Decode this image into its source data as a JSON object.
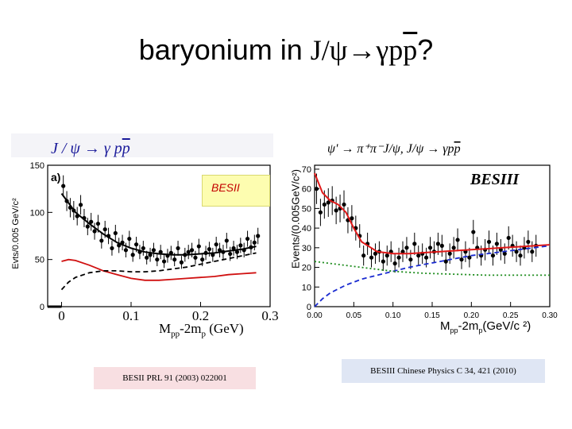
{
  "title": {
    "prefix": "baryonium in ",
    "formula": "J/ψ→γp",
    "pbar": "p",
    "suffix": "?"
  },
  "left_panel": {
    "reaction": {
      "a": "J / ψ → γ p",
      "pbar": "p"
    },
    "panel_tag": "a)",
    "badge": "BESII",
    "ylabel": "Evts/0.005 GeV/c²",
    "xlabel": {
      "main": "M",
      "sub": "pp",
      "rest": "-2m",
      "sub2": "p",
      "unit": " (GeV)"
    },
    "reference": "BESII PRL 91 (2003) 022001"
  },
  "right_panel": {
    "reaction": {
      "a": "ψ' → π⁺π⁻J/ψ, J/ψ → γp",
      "pbar": "p"
    },
    "badge": "BESIII",
    "ylabel": "Events/(0.005GeV/c²)",
    "xlabel": {
      "main": "M",
      "sub": "pp",
      "rest": "-2m",
      "sub2": "p",
      "unit": "(GeV/c ²)"
    },
    "reference": "BESIII Chinese Physics C 34, 421 (2010)"
  },
  "chart_data": [
    {
      "type": "scatter",
      "title": "J / ψ → γ pp̄",
      "xlabel": "Mpp-2mp (GeV)",
      "ylabel": "Evts/0.005 GeV/c²",
      "xlim": [
        -0.02,
        0.3
      ],
      "ylim": [
        0,
        150
      ],
      "xticks": [
        0,
        0.1,
        0.2,
        0.3
      ],
      "xtick_labels": [
        "0",
        "0.1",
        "0.2",
        "0.3"
      ],
      "yticks": [
        0,
        50,
        100,
        150
      ],
      "ytick_labels": [
        "0",
        "50",
        "100",
        "150"
      ],
      "series": [
        {
          "kind": "points",
          "color": "#000000",
          "x": [
            0.0025,
            0.0075,
            0.0125,
            0.0175,
            0.0225,
            0.0275,
            0.0325,
            0.0375,
            0.0425,
            0.0475,
            0.0525,
            0.0575,
            0.0625,
            0.0675,
            0.0725,
            0.0775,
            0.0825,
            0.0875,
            0.0925,
            0.0975,
            0.1025,
            0.1075,
            0.1125,
            0.1175,
            0.1225,
            0.1275,
            0.1325,
            0.1375,
            0.1425,
            0.1475,
            0.1525,
            0.1575,
            0.1625,
            0.1675,
            0.1725,
            0.1775,
            0.1825,
            0.1875,
            0.1925,
            0.1975,
            0.2025,
            0.2075,
            0.2125,
            0.2175,
            0.2225,
            0.2275,
            0.2325,
            0.2375,
            0.2425,
            0.2475,
            0.2525,
            0.2575,
            0.2625,
            0.2675,
            0.2725,
            0.2775,
            0.2825
          ],
          "y": [
            128,
            112,
            105,
            102,
            96,
            108,
            94,
            85,
            90,
            80,
            88,
            70,
            82,
            75,
            62,
            78,
            65,
            68,
            60,
            72,
            55,
            66,
            58,
            62,
            52,
            55,
            60,
            50,
            58,
            48,
            54,
            57,
            50,
            62,
            47,
            55,
            58,
            60,
            52,
            64,
            50,
            57,
            61,
            55,
            66,
            60,
            58,
            70,
            56,
            62,
            58,
            65,
            60,
            72,
            63,
            68,
            75
          ]
        },
        {
          "kind": "fit-total",
          "color": "#000000",
          "style": "solid",
          "x": [
            0.0,
            0.01,
            0.02,
            0.04,
            0.06,
            0.08,
            0.1,
            0.12,
            0.14,
            0.16,
            0.18,
            0.2,
            0.22,
            0.24,
            0.26,
            0.28
          ],
          "y": [
            120,
            110,
            100,
            88,
            77,
            68,
            62,
            58,
            56,
            55,
            55,
            56,
            57,
            59,
            61,
            64
          ]
        },
        {
          "kind": "phase-space",
          "color": "#d01010",
          "style": "solid",
          "x": [
            0.0,
            0.01,
            0.02,
            0.04,
            0.06,
            0.08,
            0.1,
            0.12,
            0.14,
            0.16,
            0.18,
            0.2,
            0.22,
            0.24,
            0.26,
            0.28
          ],
          "y": [
            48,
            50,
            49,
            44,
            38,
            34,
            30,
            28,
            28,
            29,
            30,
            31,
            32,
            34,
            35,
            36
          ]
        },
        {
          "kind": "background",
          "color": "#000000",
          "style": "dashed",
          "x": [
            0.0,
            0.01,
            0.02,
            0.04,
            0.06,
            0.08,
            0.1,
            0.12,
            0.14,
            0.16,
            0.18,
            0.2,
            0.22,
            0.24,
            0.26,
            0.28
          ],
          "y": [
            18,
            26,
            31,
            36,
            38,
            38,
            37,
            37,
            38,
            40,
            42,
            45,
            48,
            51,
            54,
            57
          ]
        }
      ]
    },
    {
      "type": "scatter",
      "title": "ψ' → π⁺π⁻J/ψ, J/ψ → γ pp̄",
      "xlabel": "Mpp-2mp(GeV/c ²)",
      "ylabel": "Events/(0.005GeV/c²)",
      "xlim": [
        0,
        0.3
      ],
      "ylim": [
        0,
        72
      ],
      "xticks": [
        0,
        0.05,
        0.1,
        0.15,
        0.2,
        0.25,
        0.3
      ],
      "xtick_labels": [
        "0.00",
        "0.05",
        "0.10",
        "0.15",
        "0.20",
        "0.25",
        "0.30"
      ],
      "yticks": [
        0,
        10,
        20,
        30,
        40,
        50,
        60,
        70
      ],
      "ytick_labels": [
        "0",
        "10",
        "20",
        "30",
        "40",
        "50",
        "60",
        "70"
      ],
      "series": [
        {
          "kind": "points",
          "color": "#000000",
          "x": [
            0.0025,
            0.0075,
            0.0125,
            0.0175,
            0.0225,
            0.0275,
            0.0325,
            0.0375,
            0.0425,
            0.0475,
            0.0525,
            0.0575,
            0.0625,
            0.0675,
            0.0725,
            0.0775,
            0.0825,
            0.0875,
            0.0925,
            0.0975,
            0.1025,
            0.1075,
            0.1125,
            0.1175,
            0.1225,
            0.1275,
            0.1325,
            0.1375,
            0.1425,
            0.1475,
            0.1525,
            0.1575,
            0.1625,
            0.1675,
            0.1725,
            0.1775,
            0.1825,
            0.1875,
            0.1925,
            0.1975,
            0.2025,
            0.2075,
            0.2125,
            0.2175,
            0.2225,
            0.2275,
            0.2325,
            0.2375,
            0.2425,
            0.2475,
            0.2525,
            0.2575,
            0.2625,
            0.2675,
            0.2725,
            0.2775,
            0.2825
          ],
          "y": [
            60,
            48,
            52,
            53,
            54,
            49,
            50,
            52,
            44,
            45,
            40,
            36,
            26,
            32,
            25,
            27,
            28,
            23,
            26,
            28,
            22,
            25,
            28,
            30,
            24,
            32,
            26,
            27,
            25,
            30,
            28,
            32,
            31,
            23,
            27,
            30,
            34,
            24,
            28,
            25,
            38,
            30,
            26,
            29,
            33,
            26,
            32,
            29,
            27,
            35,
            31,
            28,
            26,
            30,
            33,
            28,
            31
          ]
        },
        {
          "kind": "fit-total",
          "color": "#e01818",
          "style": "solid",
          "x": [
            0.0,
            0.01,
            0.02,
            0.03,
            0.04,
            0.05,
            0.06,
            0.08,
            0.1,
            0.12,
            0.14,
            0.16,
            0.18,
            0.2,
            0.22,
            0.24,
            0.26,
            0.28,
            0.3
          ],
          "y": [
            68,
            58,
            54,
            52,
            48,
            40,
            33,
            28,
            27,
            27,
            27.5,
            28,
            28.5,
            29,
            29.5,
            30,
            30.5,
            31,
            31.5
          ]
        },
        {
          "kind": "background",
          "color": "#1a2bd0",
          "style": "dashed",
          "x": [
            0.0,
            0.01,
            0.02,
            0.04,
            0.06,
            0.08,
            0.1,
            0.12,
            0.14,
            0.16,
            0.18,
            0.2,
            0.22,
            0.24,
            0.26,
            0.28,
            0.3
          ],
          "y": [
            0,
            4,
            7,
            11,
            14,
            16,
            18,
            20,
            21.5,
            23,
            24.5,
            26,
            27,
            28,
            29,
            30,
            31
          ]
        },
        {
          "kind": "phase-space",
          "color": "#1a8a1a",
          "style": "dotted",
          "x": [
            0.0,
            0.02,
            0.04,
            0.06,
            0.08,
            0.1,
            0.14,
            0.18,
            0.22,
            0.26,
            0.3
          ],
          "y": [
            23,
            22,
            21,
            20,
            19,
            18,
            17,
            16.5,
            16,
            16,
            16
          ]
        }
      ]
    }
  ]
}
